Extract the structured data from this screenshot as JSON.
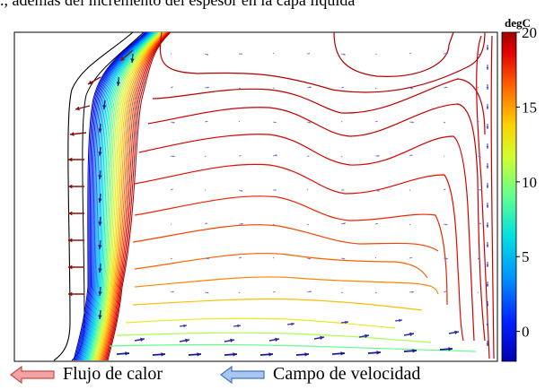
{
  "caption": "., además del incremento del espesor en la capa líquida",
  "chart_data": {
    "type": "heatmap",
    "description_visible": "Isothermal contours with velocity field vectors and heat flux arrows",
    "colorbar": {
      "unit": "degC",
      "ticks": [
        "20",
        "15",
        "10",
        "5",
        "0"
      ],
      "range": [
        -2,
        20
      ],
      "colormap": [
        "#0000ff",
        "#0080ff",
        "#00ffff",
        "#80ff80",
        "#ffff00",
        "#ff8000",
        "#ff0000",
        "#a00000"
      ]
    },
    "legend": [
      {
        "name": "Flujo de calor",
        "color": "#e35a5a",
        "icon": "red-arrow-icon"
      },
      {
        "name": "Campo de velocidad",
        "color": "#4a86d8",
        "icon": "blue-arrow-icon"
      }
    ],
    "grid": false
  }
}
